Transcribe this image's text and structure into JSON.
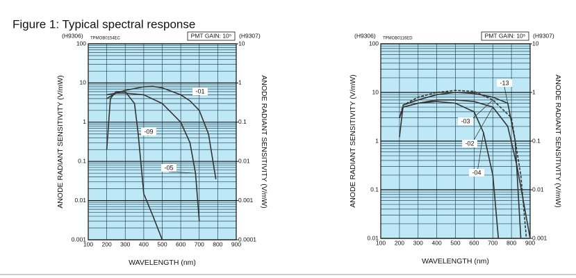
{
  "title": "Figure 1: Typical spectral response",
  "chart_data": [
    {
      "type": "line",
      "log_y": true,
      "grid": true,
      "background": "#bfe8f6",
      "top_left_label": "(H9306)",
      "top_right_label": "(H9307)",
      "code": "TPMOB0154EC",
      "gain": "PMT GAIN: 10⁵",
      "ylabel": "ANODE RADIANT SENSITIVITY (V/mW)",
      "y2label": "ANODE RADIANT SENSITIVITY (V/mW)",
      "xlabel": "WAVELENGTH (nm)",
      "xlim": [
        100,
        900
      ],
      "xticks": [
        100,
        200,
        300,
        400,
        500,
        600,
        700,
        800,
        900
      ],
      "ylim": [
        0.001,
        100
      ],
      "yticks": [
        0.001,
        0.01,
        0.1,
        1,
        10,
        100
      ],
      "y2lim": [
        0.0001,
        10
      ],
      "y2ticks": [
        0.0001,
        0.001,
        0.01,
        0.1,
        1,
        10
      ],
      "series": [
        {
          "name": "-01",
          "color": "#333333",
          "x": [
            200,
            250,
            300,
            400,
            450,
            500,
            600,
            650,
            700,
            750,
            790
          ],
          "values": [
            4,
            5.5,
            6.5,
            8,
            8.2,
            7.5,
            5,
            3.5,
            2,
            0.5,
            0.035
          ]
        },
        {
          "name": "-09",
          "color": "#333333",
          "x": [
            200,
            220,
            250,
            300,
            350,
            370,
            400,
            450,
            500
          ],
          "values": [
            0.2,
            4,
            6,
            6,
            3,
            0.5,
            0.015,
            0.004,
            0.001
          ]
        },
        {
          "name": "-05",
          "color": "#333333",
          "x": [
            200,
            250,
            300,
            400,
            500,
            600,
            650,
            680,
            700
          ],
          "values": [
            5,
            5.5,
            5.5,
            5,
            3,
            1,
            0.3,
            0.05,
            0.003
          ]
        }
      ]
    },
    {
      "type": "line",
      "log_y": true,
      "grid": true,
      "background": "#bfe8f6",
      "top_left_label": "(H9306)",
      "top_right_label": "(H9307)",
      "code": "TPMOB0116ED",
      "gain": "PMT GAIN: 10⁵",
      "ylabel": "ANODE RADIANT SENSITIVITY (V/mW)",
      "y2label": "ANODE RADIANT SENSITIVITY (V/mW)",
      "xlabel": "WAVELENGTH (nm)",
      "xlim": [
        100,
        900
      ],
      "xticks": [
        100,
        200,
        300,
        400,
        500,
        600,
        700,
        800,
        900
      ],
      "ylim": [
        0.01,
        100
      ],
      "yticks": [
        0.01,
        0.1,
        1,
        10,
        100
      ],
      "y2lim": [
        0.001,
        10
      ],
      "y2ticks": [
        0.001,
        0.01,
        0.1,
        1,
        10
      ],
      "series": [
        {
          "name": "-13",
          "color": "#333333",
          "x": [
            200,
            220,
            300,
            400,
            500,
            600,
            700,
            780,
            820,
            850
          ],
          "values": [
            1.2,
            5.5,
            7,
            9,
            10,
            9.5,
            8,
            6,
            1,
            0.01
          ]
        },
        {
          "name": "-03",
          "color": "#333333",
          "style": "dashed",
          "x": [
            200,
            220,
            300,
            400,
            500,
            600,
            700,
            800,
            850,
            880
          ],
          "values": [
            3,
            5.5,
            8,
            10,
            11,
            10.5,
            7,
            3,
            0.2,
            0.01
          ]
        },
        {
          "name": "-02",
          "color": "#333333",
          "x": [
            200,
            220,
            300,
            400,
            500,
            600,
            700,
            780,
            830,
            900
          ],
          "values": [
            3,
            5,
            6,
            7,
            7,
            6.5,
            5,
            2,
            0.3,
            0.01
          ]
        },
        {
          "name": "-04",
          "color": "#333333",
          "x": [
            200,
            220,
            300,
            400,
            500,
            600,
            650,
            700,
            730
          ],
          "values": [
            3,
            5,
            6,
            6.5,
            6,
            4,
            1.5,
            0.2,
            0.01
          ]
        }
      ]
    }
  ]
}
